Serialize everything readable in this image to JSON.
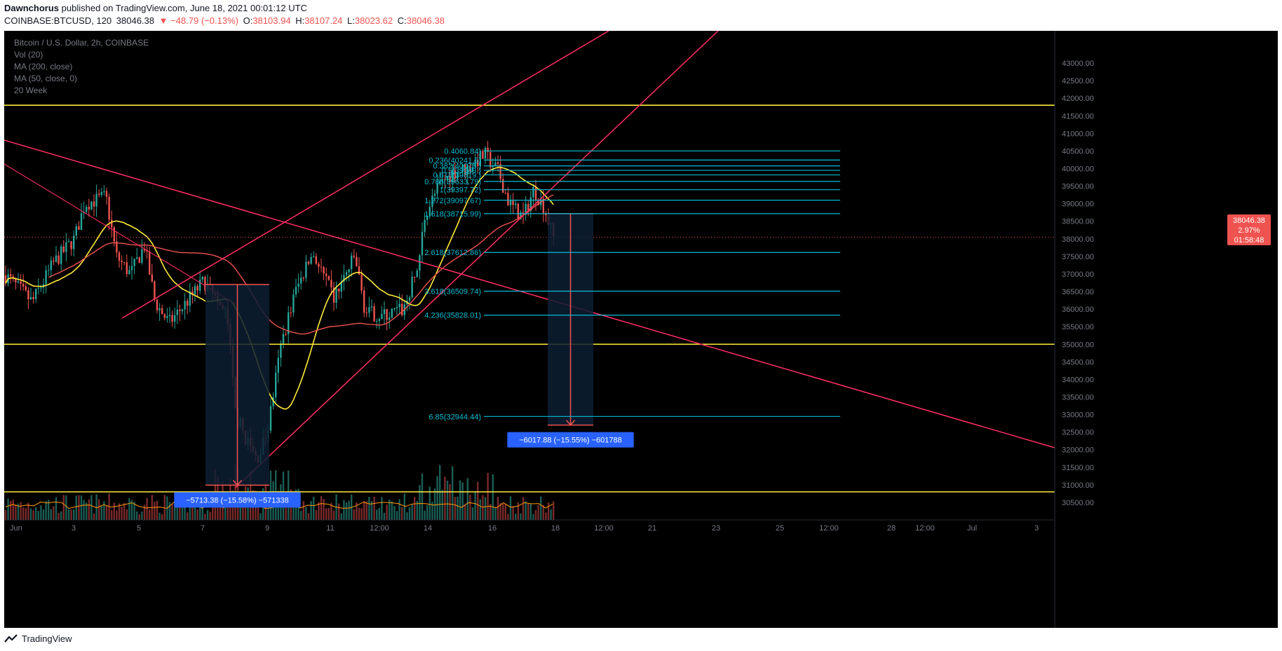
{
  "header": {
    "author": "Dawnchorus",
    "published": "published on TradingView.com, June 18, 2021 00:01:12 UTC",
    "symbol": "COINBASE:BTCUSD, 120",
    "last": "38046.38",
    "change": "▼ −48.79 (−0.13%)",
    "o_label": "O:",
    "o": "38103.94",
    "h_label": "H:",
    "h": "38107.24",
    "l_label": "L:",
    "l": "38023.62",
    "c_label": "C:",
    "c": "38046.38"
  },
  "legend": {
    "title": "Bitcoin / U.S. Dollar, 2h, COINBASE",
    "vol": "Vol (20)",
    "ma200": "MA (200, close)",
    "ma50": "MA (50, close, 0)",
    "week": "20 Week"
  },
  "price_badge": {
    "price": "38046.38",
    "pct": "2.97%",
    "timer": "01:58:48"
  },
  "footer": {
    "brand": "TradingView"
  },
  "colors": {
    "bg": "#000000",
    "up": "#26a69a",
    "down": "#ef5350",
    "yellow_line": "#ffeb3b",
    "trend_line": "#ff2e63",
    "fib": "#00bcd4",
    "ma50": "#ffeb3b",
    "ma200": "#ef5350",
    "box_fill": "#0d1f33",
    "label_bg": "#2962ff"
  },
  "chart_data": {
    "type": "candlestick",
    "yaxis_ticks": [
      30500,
      31000,
      31500,
      32000,
      32500,
      33000,
      33500,
      34000,
      34500,
      35000,
      35500,
      36000,
      36500,
      37000,
      37500,
      38000,
      38500,
      39000,
      39500,
      40000,
      40500,
      41000,
      41500,
      42000,
      42500,
      43000
    ],
    "ylim": [
      30000,
      43000
    ],
    "xaxis_ticks": [
      "Jun",
      "3",
      "5",
      "7",
      "9",
      "11",
      "12:00",
      "14",
      "16",
      "18",
      "12:00",
      "21",
      "23",
      "25",
      "12:00",
      "28",
      "12:00",
      "Jul",
      "3"
    ],
    "horizontal_levels": [
      41800,
      35000,
      30800
    ],
    "fib_levels": [
      {
        "label": "0.4060.84)",
        "value": 40500
      },
      {
        "label": "0.236(40241.5)",
        "value": 40241.5
      },
      {
        "label": "0.382(40075.)",
        "value": 40075
      },
      {
        "label": "0.5(39949.)",
        "value": 39949
      },
      {
        "label": "0.618(39819.)",
        "value": 39819
      },
      {
        "label": "0.786(39633.79)",
        "value": 39633.79
      },
      {
        "label": "1(39397.72)",
        "value": 39397.72
      },
      {
        "label": "1.272(39097.67)",
        "value": 39097.67
      },
      {
        "label": "1.618(38715.99)",
        "value": 38715.99
      },
      {
        "label": "2.618(37612.86)",
        "value": 37612.86
      },
      {
        "label": "3.618(36509.74)",
        "value": 36509.74
      },
      {
        "label": "4.236(35828.01)",
        "value": 35828.01
      },
      {
        "label": "6.85(32944.44)",
        "value": 32944.44
      }
    ],
    "measure_labels": [
      "−5713.38 (−15.58%) −571338",
      "−6017.88 (−15.55%) −601788"
    ]
  }
}
